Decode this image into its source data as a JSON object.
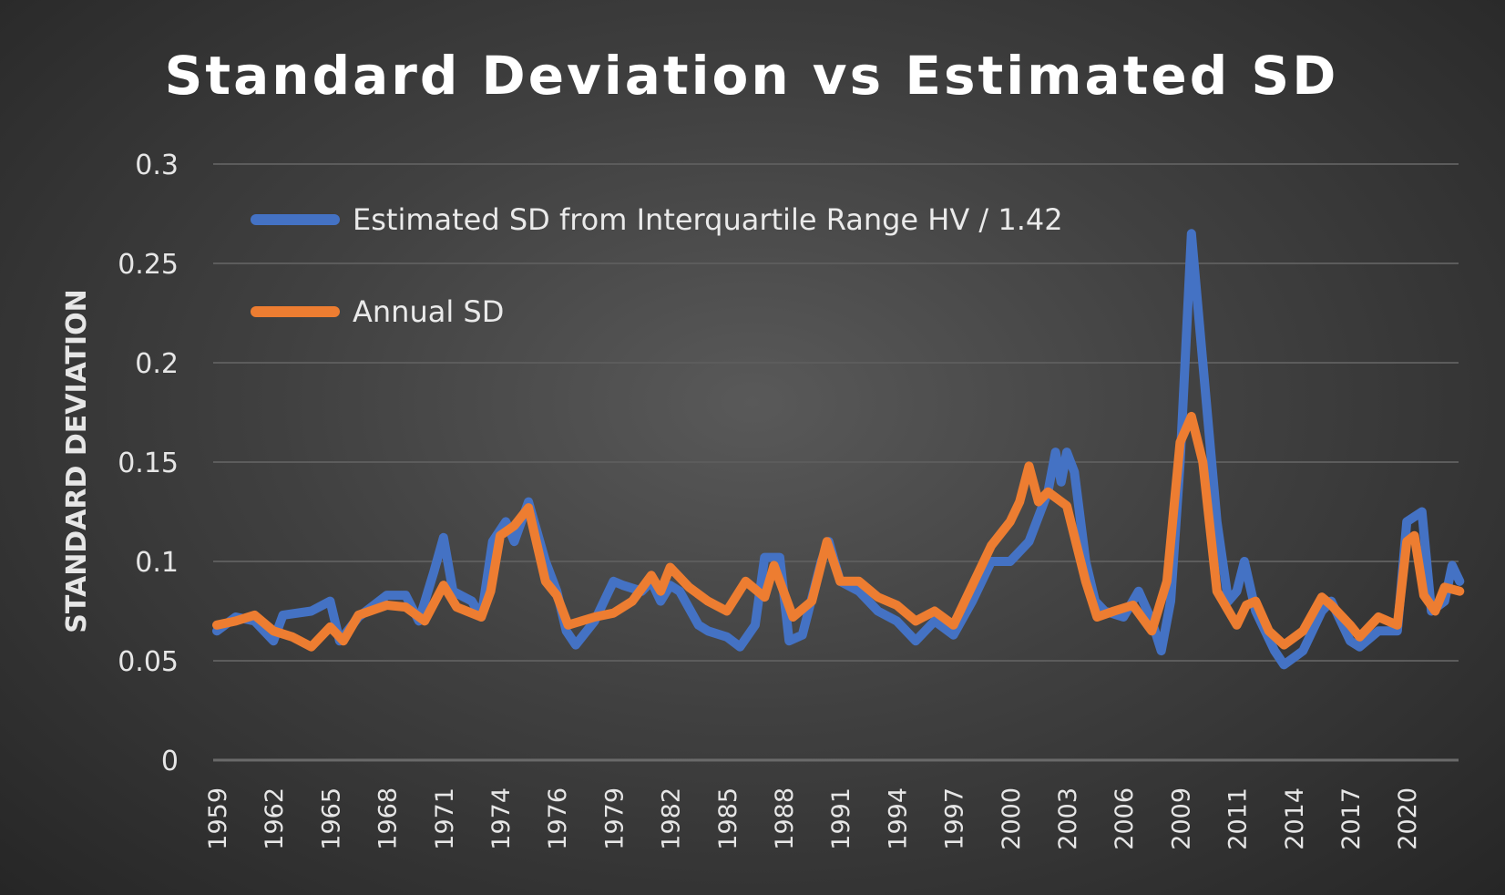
{
  "chart_data": {
    "type": "line",
    "title": "Standard Deviation vs Estimated SD",
    "xlabel": "",
    "ylabel": "STANDARD DEVIATION",
    "ylim": [
      0,
      0.3
    ],
    "yticks": [
      0,
      0.05,
      0.1,
      0.15,
      0.2,
      0.25,
      0.3
    ],
    "ytick_labels": [
      "0",
      "0.05",
      "0.1",
      "0.15",
      "0.2",
      "0.25",
      "0.3"
    ],
    "x_tick_labels": [
      "1959",
      "1962",
      "1965",
      "1968",
      "1971",
      "1974",
      "1976",
      "1979",
      "1982",
      "1985",
      "1988",
      "1991",
      "1994",
      "1997",
      "2000",
      "2003",
      "2006",
      "2009",
      "2011",
      "2014",
      "2017",
      "2020"
    ],
    "xlim": [
      1959,
      2022.8
    ],
    "grid": true,
    "legend_position": "top-left",
    "colors": {
      "blue": "#4472C4",
      "orange": "#ED7D31"
    },
    "series": [
      {
        "name": "Estimated SD from Interquartile Range HV / 1.42",
        "color": "#4472C4",
        "points": [
          [
            1959,
            0.065
          ],
          [
            1960,
            0.072
          ],
          [
            1961,
            0.07
          ],
          [
            1962,
            0.06
          ],
          [
            1962.5,
            0.073
          ],
          [
            1964,
            0.075
          ],
          [
            1965,
            0.08
          ],
          [
            1965.5,
            0.06
          ],
          [
            1966.5,
            0.072
          ],
          [
            1968,
            0.083
          ],
          [
            1969,
            0.083
          ],
          [
            1969.7,
            0.07
          ],
          [
            1970.5,
            0.095
          ],
          [
            1971,
            0.112
          ],
          [
            1971.5,
            0.085
          ],
          [
            1972.5,
            0.08
          ],
          [
            1973,
            0.072
          ],
          [
            1973.6,
            0.11
          ],
          [
            1974.2,
            0.12
          ],
          [
            1974.5,
            0.11
          ],
          [
            1975,
            0.13
          ],
          [
            1975.6,
            0.1
          ],
          [
            1976,
            0.085
          ],
          [
            1976.5,
            0.065
          ],
          [
            1977,
            0.058
          ],
          [
            1978,
            0.07
          ],
          [
            1979,
            0.09
          ],
          [
            1979.5,
            0.088
          ],
          [
            1980.5,
            0.085
          ],
          [
            1981,
            0.09
          ],
          [
            1981.5,
            0.08
          ],
          [
            1982,
            0.088
          ],
          [
            1982.5,
            0.085
          ],
          [
            1983.5,
            0.068
          ],
          [
            1984,
            0.065
          ],
          [
            1985,
            0.062
          ],
          [
            1985.7,
            0.057
          ],
          [
            1986.5,
            0.068
          ],
          [
            1987,
            0.102
          ],
          [
            1987.8,
            0.102
          ],
          [
            1988.3,
            0.06
          ],
          [
            1989,
            0.063
          ],
          [
            1990,
            0.1
          ],
          [
            1990.4,
            0.11
          ],
          [
            1991,
            0.09
          ],
          [
            1992,
            0.085
          ],
          [
            1993,
            0.075
          ],
          [
            1994,
            0.07
          ],
          [
            1995,
            0.06
          ],
          [
            1996,
            0.07
          ],
          [
            1997,
            0.063
          ],
          [
            1998,
            0.08
          ],
          [
            1999,
            0.1
          ],
          [
            2000,
            0.1
          ],
          [
            2001,
            0.11
          ],
          [
            2002,
            0.135
          ],
          [
            2002.4,
            0.155
          ],
          [
            2002.7,
            0.14
          ],
          [
            2003,
            0.155
          ],
          [
            2003.4,
            0.145
          ],
          [
            2004,
            0.1
          ],
          [
            2004.5,
            0.08
          ],
          [
            2005,
            0.075
          ],
          [
            2006,
            0.072
          ],
          [
            2006.8,
            0.085
          ],
          [
            2007.5,
            0.07
          ],
          [
            2008,
            0.055
          ],
          [
            2008.5,
            0.08
          ],
          [
            2009,
            0.15
          ],
          [
            2009.4,
            0.265
          ],
          [
            2009.8,
            0.2
          ],
          [
            2010.3,
            0.12
          ],
          [
            2010.7,
            0.08
          ],
          [
            2011,
            0.085
          ],
          [
            2011.4,
            0.1
          ],
          [
            2012,
            0.075
          ],
          [
            2013,
            0.055
          ],
          [
            2013.5,
            0.048
          ],
          [
            2014.5,
            0.055
          ],
          [
            2015.5,
            0.075
          ],
          [
            2016,
            0.08
          ],
          [
            2017,
            0.06
          ],
          [
            2017.5,
            0.057
          ],
          [
            2018.5,
            0.065
          ],
          [
            2019.5,
            0.065
          ],
          [
            2020,
            0.12
          ],
          [
            2020.8,
            0.125
          ],
          [
            2021.3,
            0.075
          ],
          [
            2022,
            0.08
          ],
          [
            2022.4,
            0.098
          ],
          [
            2022.8,
            0.09
          ]
        ]
      },
      {
        "name": "Annual SD",
        "color": "#ED7D31",
        "points": [
          [
            1959,
            0.068
          ],
          [
            1960,
            0.07
          ],
          [
            1961,
            0.073
          ],
          [
            1962,
            0.065
          ],
          [
            1963,
            0.062
          ],
          [
            1964,
            0.057
          ],
          [
            1965,
            0.067
          ],
          [
            1965.7,
            0.06
          ],
          [
            1966.5,
            0.073
          ],
          [
            1968,
            0.078
          ],
          [
            1969,
            0.077
          ],
          [
            1970,
            0.07
          ],
          [
            1971,
            0.088
          ],
          [
            1971.7,
            0.077
          ],
          [
            1973,
            0.072
          ],
          [
            1973.5,
            0.085
          ],
          [
            1974,
            0.113
          ],
          [
            1974.5,
            0.118
          ],
          [
            1975,
            0.127
          ],
          [
            1975.6,
            0.09
          ],
          [
            1976,
            0.083
          ],
          [
            1976.6,
            0.068
          ],
          [
            1978,
            0.072
          ],
          [
            1979,
            0.074
          ],
          [
            1980,
            0.08
          ],
          [
            1981,
            0.093
          ],
          [
            1981.5,
            0.085
          ],
          [
            1982,
            0.097
          ],
          [
            1983,
            0.087
          ],
          [
            1984,
            0.08
          ],
          [
            1985,
            0.075
          ],
          [
            1986,
            0.09
          ],
          [
            1987,
            0.082
          ],
          [
            1987.5,
            0.098
          ],
          [
            1988,
            0.085
          ],
          [
            1988.5,
            0.072
          ],
          [
            1989.5,
            0.08
          ],
          [
            1990.3,
            0.11
          ],
          [
            1991,
            0.09
          ],
          [
            1992,
            0.09
          ],
          [
            1993,
            0.082
          ],
          [
            1994,
            0.078
          ],
          [
            1995,
            0.07
          ],
          [
            1996,
            0.075
          ],
          [
            1997,
            0.068
          ],
          [
            1998,
            0.088
          ],
          [
            1999,
            0.108
          ],
          [
            2000,
            0.12
          ],
          [
            2000.5,
            0.13
          ],
          [
            2001,
            0.148
          ],
          [
            2001.5,
            0.13
          ],
          [
            2002,
            0.135
          ],
          [
            2003,
            0.128
          ],
          [
            2004,
            0.09
          ],
          [
            2004.6,
            0.072
          ],
          [
            2005.5,
            0.075
          ],
          [
            2006.5,
            0.078
          ],
          [
            2007.5,
            0.065
          ],
          [
            2008.3,
            0.09
          ],
          [
            2009,
            0.16
          ],
          [
            2009.4,
            0.173
          ],
          [
            2009.8,
            0.15
          ],
          [
            2010.3,
            0.085
          ],
          [
            2011,
            0.068
          ],
          [
            2011.5,
            0.078
          ],
          [
            2012,
            0.08
          ],
          [
            2012.7,
            0.065
          ],
          [
            2013.5,
            0.058
          ],
          [
            2014.5,
            0.065
          ],
          [
            2015.5,
            0.082
          ],
          [
            2016,
            0.078
          ],
          [
            2017,
            0.068
          ],
          [
            2017.5,
            0.062
          ],
          [
            2018.5,
            0.072
          ],
          [
            2019.5,
            0.068
          ],
          [
            2020,
            0.11
          ],
          [
            2020.4,
            0.113
          ],
          [
            2020.9,
            0.083
          ],
          [
            2021.5,
            0.075
          ],
          [
            2022,
            0.087
          ],
          [
            2022.8,
            0.085
          ]
        ]
      }
    ]
  }
}
